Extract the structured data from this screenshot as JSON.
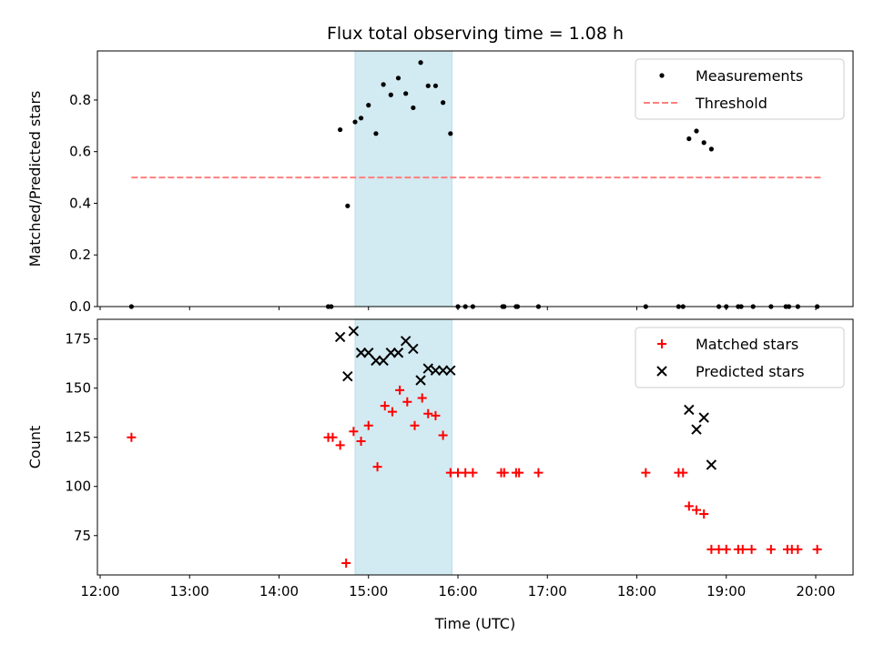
{
  "chart_data": [
    {
      "type": "scatter",
      "title": "Flux total observing time = 1.08 h",
      "xlabel": "",
      "ylabel": "Matched/Predicted stars",
      "xlim": [
        "12:00",
        "20:00"
      ],
      "ylim": [
        0,
        0.99
      ],
      "yticks": [
        "0.0",
        "0.2",
        "0.4",
        "0.6",
        "0.8"
      ],
      "ytick_values": [
        0,
        0.2,
        0.4,
        0.6,
        0.8
      ],
      "highlight_band": {
        "start": "14:51",
        "end": "15:56",
        "color": "#add8e6"
      },
      "legend_position": "top-right",
      "grid": false,
      "series": [
        {
          "name": "Measurements",
          "mark": "dot",
          "color": "#000000",
          "points": [
            [
              "12:21",
              0.0
            ],
            [
              "14:33",
              0.0
            ],
            [
              "14:35",
              0.0
            ],
            [
              "14:41",
              0.685
            ],
            [
              "14:46",
              0.39
            ],
            [
              "14:51",
              0.715
            ],
            [
              "14:55",
              0.73
            ],
            [
              "15:00",
              0.78
            ],
            [
              "15:05",
              0.67
            ],
            [
              "15:10",
              0.86
            ],
            [
              "15:15",
              0.82
            ],
            [
              "15:20",
              0.885
            ],
            [
              "15:25",
              0.825
            ],
            [
              "15:30",
              0.77
            ],
            [
              "15:35",
              0.945
            ],
            [
              "15:40",
              0.855
            ],
            [
              "15:45",
              0.855
            ],
            [
              "15:50",
              0.79
            ],
            [
              "15:55",
              0.67
            ],
            [
              "16:00",
              0.0
            ],
            [
              "16:05",
              0.0
            ],
            [
              "16:10",
              0.0
            ],
            [
              "16:30",
              0.0
            ],
            [
              "16:31",
              0.0
            ],
            [
              "16:39",
              0.0
            ],
            [
              "16:40",
              0.0
            ],
            [
              "16:54",
              0.0
            ],
            [
              "18:06",
              0.0
            ],
            [
              "18:28",
              0.0
            ],
            [
              "18:31",
              0.0
            ],
            [
              "18:35",
              0.65
            ],
            [
              "18:40",
              0.68
            ],
            [
              "18:45",
              0.635
            ],
            [
              "18:50",
              0.61
            ],
            [
              "18:55",
              0.0
            ],
            [
              "19:00",
              0.0
            ],
            [
              "19:08",
              0.0
            ],
            [
              "19:10",
              0.0
            ],
            [
              "19:18",
              0.0
            ],
            [
              "19:30",
              0.0
            ],
            [
              "19:40",
              0.0
            ],
            [
              "19:42",
              0.0
            ],
            [
              "19:48",
              0.0
            ],
            [
              "20:01",
              0.0
            ]
          ]
        },
        {
          "name": "Threshold",
          "mark": "dashed-line",
          "color": "#ff7f7f",
          "points": [
            [
              "12:21",
              0.5
            ],
            [
              "20:05",
              0.5
            ]
          ]
        }
      ]
    },
    {
      "type": "scatter",
      "title": "",
      "xlabel": "Time (UTC)",
      "ylabel": "Count",
      "xlim": [
        "12:00",
        "20:00"
      ],
      "ylim": [
        55,
        185
      ],
      "xticks": [
        "12:00",
        "13:00",
        "14:00",
        "15:00",
        "16:00",
        "17:00",
        "18:00",
        "19:00",
        "20:00"
      ],
      "yticks": [
        "75",
        "100",
        "125",
        "150",
        "175"
      ],
      "ytick_values": [
        75,
        100,
        125,
        150,
        175
      ],
      "highlight_band": {
        "start": "14:51",
        "end": "15:56",
        "color": "#add8e6"
      },
      "legend_position": "top-right",
      "grid": false,
      "series": [
        {
          "name": "Matched stars",
          "mark": "plus",
          "color": "#ff0000",
          "points": [
            [
              "12:21",
              125
            ],
            [
              "14:33",
              125
            ],
            [
              "14:36",
              125
            ],
            [
              "14:41",
              121
            ],
            [
              "14:45",
              61
            ],
            [
              "14:50",
              128
            ],
            [
              "14:55",
              123
            ],
            [
              "15:00",
              131
            ],
            [
              "15:06",
              110
            ],
            [
              "15:11",
              141
            ],
            [
              "15:16",
              138
            ],
            [
              "15:21",
              149
            ],
            [
              "15:26",
              143
            ],
            [
              "15:31",
              131
            ],
            [
              "15:36",
              145
            ],
            [
              "15:40",
              137
            ],
            [
              "15:45",
              136
            ],
            [
              "15:50",
              126
            ],
            [
              "15:55",
              107
            ],
            [
              "16:00",
              107
            ],
            [
              "16:05",
              107
            ],
            [
              "16:10",
              107
            ],
            [
              "16:29",
              107
            ],
            [
              "16:31",
              107
            ],
            [
              "16:39",
              107
            ],
            [
              "16:41",
              107
            ],
            [
              "16:54",
              107
            ],
            [
              "18:06",
              107
            ],
            [
              "18:28",
              107
            ],
            [
              "18:31",
              107
            ],
            [
              "18:35",
              90
            ],
            [
              "18:40",
              88
            ],
            [
              "18:45",
              86
            ],
            [
              "18:50",
              68
            ],
            [
              "18:55",
              68
            ],
            [
              "19:00",
              68
            ],
            [
              "19:08",
              68
            ],
            [
              "19:11",
              68
            ],
            [
              "19:17",
              68
            ],
            [
              "19:30",
              68
            ],
            [
              "19:41",
              68
            ],
            [
              "19:44",
              68
            ],
            [
              "19:48",
              68
            ],
            [
              "20:01",
              68
            ]
          ]
        },
        {
          "name": "Predicted stars",
          "mark": "x",
          "color": "#000000",
          "points": [
            [
              "14:41",
              176
            ],
            [
              "14:46",
              156
            ],
            [
              "14:50",
              179
            ],
            [
              "14:55",
              168
            ],
            [
              "15:00",
              168
            ],
            [
              "15:05",
              164
            ],
            [
              "15:10",
              164
            ],
            [
              "15:15",
              168
            ],
            [
              "15:20",
              168
            ],
            [
              "15:25",
              174
            ],
            [
              "15:30",
              170
            ],
            [
              "15:35",
              154
            ],
            [
              "15:40",
              160
            ],
            [
              "15:45",
              159
            ],
            [
              "15:50",
              159
            ],
            [
              "15:55",
              159
            ],
            [
              "18:35",
              139
            ],
            [
              "18:40",
              129
            ],
            [
              "18:45",
              135
            ],
            [
              "18:50",
              111
            ]
          ]
        }
      ]
    }
  ]
}
